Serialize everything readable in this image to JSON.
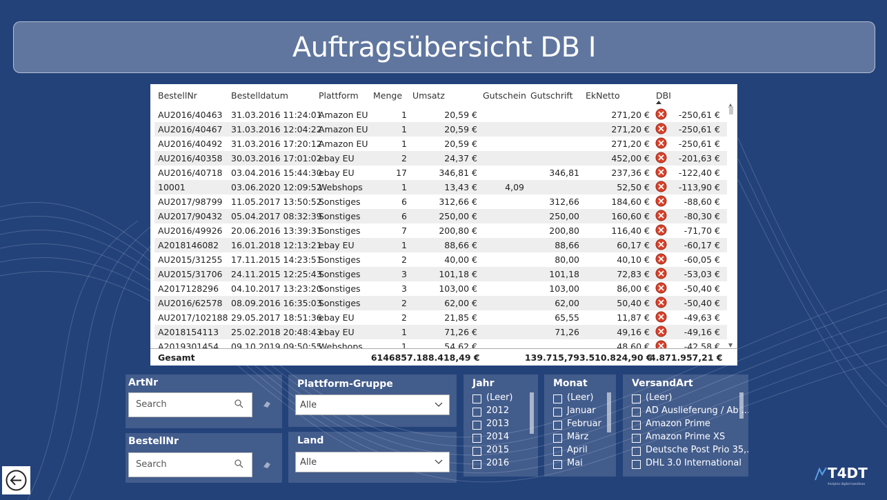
{
  "title": "Auftragsübersicht DB I",
  "table": {
    "headers": {
      "bestellnr": "BestellNr",
      "bestelldatum": "Bestelldatum",
      "plattform": "Plattform",
      "menge": "Menge",
      "umsatz": "Umsatz",
      "gutschein": "Gutschein",
      "gutschrift": "Gutschrift",
      "eknetto": "EkNetto",
      "dbi": "DBI"
    },
    "rows": [
      {
        "nr": "AU2016/40463",
        "datum": "31.03.2016 11:24:01",
        "plattform": "Amazon EU",
        "menge": "1",
        "umsatz": "20,59 €",
        "gutschein": "",
        "gutschrift": "",
        "eknetto": "271,20 €",
        "dbi": "-250,61 €"
      },
      {
        "nr": "AU2016/40467",
        "datum": "31.03.2016 12:04:22",
        "plattform": "Amazon EU",
        "menge": "1",
        "umsatz": "20,59 €",
        "gutschein": "",
        "gutschrift": "",
        "eknetto": "271,20 €",
        "dbi": "-250,61 €"
      },
      {
        "nr": "AU2016/40492",
        "datum": "31.03.2016 17:20:12",
        "plattform": "Amazon EU",
        "menge": "1",
        "umsatz": "20,59 €",
        "gutschein": "",
        "gutschrift": "",
        "eknetto": "271,20 €",
        "dbi": "-250,61 €"
      },
      {
        "nr": "AU2016/40358",
        "datum": "30.03.2016 17:01:02",
        "plattform": "ebay EU",
        "menge": "2",
        "umsatz": "24,37 €",
        "gutschein": "",
        "gutschrift": "",
        "eknetto": "452,00 €",
        "dbi": "-201,63 €"
      },
      {
        "nr": "AU2016/40718",
        "datum": "03.04.2016 15:44:30",
        "plattform": "ebay EU",
        "menge": "17",
        "umsatz": "346,81 €",
        "gutschein": "",
        "gutschrift": "346,81",
        "eknetto": "237,36 €",
        "dbi": "-122,40 €"
      },
      {
        "nr": "10001",
        "datum": "03.06.2020 12:09:52",
        "plattform": "Webshops",
        "menge": "1",
        "umsatz": "13,43 €",
        "gutschein": "4,09",
        "gutschrift": "",
        "eknetto": "52,50 €",
        "dbi": "-113,90 €"
      },
      {
        "nr": "AU2017/98799",
        "datum": "11.05.2017 13:50:52",
        "plattform": "Sonstiges",
        "menge": "6",
        "umsatz": "312,66 €",
        "gutschein": "",
        "gutschrift": "312,66",
        "eknetto": "184,60 €",
        "dbi": "-88,60 €"
      },
      {
        "nr": "AU2017/90432",
        "datum": "05.04.2017 08:32:39",
        "plattform": "Sonstiges",
        "menge": "6",
        "umsatz": "250,00 €",
        "gutschein": "",
        "gutschrift": "250,00",
        "eknetto": "160,60 €",
        "dbi": "-80,30 €"
      },
      {
        "nr": "AU2016/49926",
        "datum": "20.06.2016 13:39:31",
        "plattform": "Sonstiges",
        "menge": "7",
        "umsatz": "200,80 €",
        "gutschein": "",
        "gutschrift": "200,80",
        "eknetto": "116,40 €",
        "dbi": "-71,70 €"
      },
      {
        "nr": "A2018146082",
        "datum": "16.01.2018 12:13:21",
        "plattform": "ebay EU",
        "menge": "1",
        "umsatz": "88,66 €",
        "gutschein": "",
        "gutschrift": "88,66",
        "eknetto": "60,17 €",
        "dbi": "-60,17 €"
      },
      {
        "nr": "AU2015/31255",
        "datum": "17.11.2015 14:23:51",
        "plattform": "Sonstiges",
        "menge": "2",
        "umsatz": "40,00 €",
        "gutschein": "",
        "gutschrift": "80,00",
        "eknetto": "40,10 €",
        "dbi": "-60,05 €"
      },
      {
        "nr": "AU2015/31706",
        "datum": "24.11.2015 12:25:43",
        "plattform": "Sonstiges",
        "menge": "3",
        "umsatz": "101,18 €",
        "gutschein": "",
        "gutschrift": "101,18",
        "eknetto": "72,83 €",
        "dbi": "-53,03 €"
      },
      {
        "nr": "A2017128296",
        "datum": "04.10.2017 13:23:20",
        "plattform": "Sonstiges",
        "menge": "3",
        "umsatz": "103,00 €",
        "gutschein": "",
        "gutschrift": "103,00",
        "eknetto": "86,00 €",
        "dbi": "-50,40 €"
      },
      {
        "nr": "AU2016/62578",
        "datum": "08.09.2016 16:35:03",
        "plattform": "Sonstiges",
        "menge": "2",
        "umsatz": "62,00 €",
        "gutschein": "",
        "gutschrift": "62,00",
        "eknetto": "50,40 €",
        "dbi": "-50,40 €"
      },
      {
        "nr": "AU2017/102188",
        "datum": "29.05.2017 18:51:36",
        "plattform": "ebay EU",
        "menge": "2",
        "umsatz": "21,85 €",
        "gutschein": "",
        "gutschrift": "65,55",
        "eknetto": "11,87 €",
        "dbi": "-49,63 €"
      },
      {
        "nr": "A2018154113",
        "datum": "25.02.2018 20:48:43",
        "plattform": "ebay EU",
        "menge": "1",
        "umsatz": "71,26 €",
        "gutschein": "",
        "gutschrift": "71,26",
        "eknetto": "49,16 €",
        "dbi": "-49,16 €"
      },
      {
        "nr": "A2019301454",
        "datum": "09.10.2019 09:50:55",
        "plattform": "Webshops",
        "menge": "1",
        "umsatz": "54,62 €",
        "gutschein": "",
        "gutschrift": "",
        "eknetto": "48,60 €",
        "dbi": "-42,58 €"
      }
    ],
    "totals": {
      "label": "Gesamt",
      "menge": "614685",
      "umsatz": "7.188.418,49 €",
      "gutschrift": "139.715,79",
      "eknetto": "3.510.824,90 €",
      "dbi": "4.871.957,21 €"
    }
  },
  "slicers": {
    "artnr": {
      "title": "ArtNr",
      "placeholder": "Search"
    },
    "bestellnr": {
      "title": "BestellNr",
      "placeholder": "Search"
    },
    "plattform_gruppe": {
      "title": "Plattform-Gruppe",
      "value": "Alle"
    },
    "land": {
      "title": "Land",
      "value": "Alle"
    },
    "jahr": {
      "title": "Jahr",
      "items": [
        "(Leer)",
        "2012",
        "2013",
        "2014",
        "2015",
        "2016"
      ]
    },
    "monat": {
      "title": "Monat",
      "items": [
        "(Leer)",
        "Januar",
        "Februar",
        "März",
        "April",
        "Mai"
      ]
    },
    "versandart": {
      "title": "VersandArt",
      "items": [
        "(Leer)",
        "AD Auslieferung / Ab ...",
        "Amazon Prime",
        "Amazon Prime XS",
        "Deutsche Post Prio 35,...",
        "DHL 3.0 International"
      ]
    }
  },
  "logo": {
    "text": "T4DT",
    "tagline": "Analytics digital transitions"
  },
  "colors": {
    "background": "#23427a",
    "error": "#d9412b"
  }
}
